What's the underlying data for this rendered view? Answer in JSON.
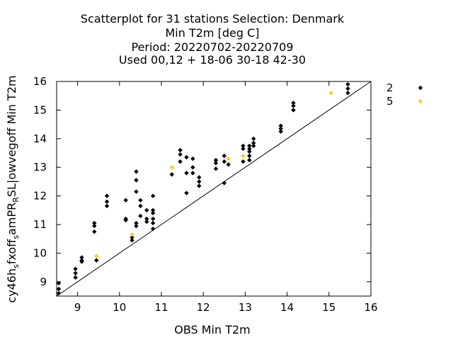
{
  "chart_data": {
    "type": "scatter",
    "title_lines": [
      "Scatterplot for   31 stations Selection: Denmark",
      "Min T2m [deg C]",
      "Period: 20220702-20220709",
      "Used  00,12  + 18-06 30-18 42-30"
    ],
    "xlabel": "OBS Min T2m",
    "ylabel_parts": [
      "cy46h",
      "s",
      "fxoff",
      "s",
      "amPR",
      "R",
      "SL|owvegoff Min T2m"
    ],
    "xlim": [
      8.5,
      16
    ],
    "ylim": [
      8.5,
      16
    ],
    "xticks": [
      9,
      10,
      11,
      12,
      13,
      14,
      15,
      16
    ],
    "yticks": [
      9,
      10,
      11,
      12,
      13,
      14,
      15,
      16
    ],
    "diagonal": true,
    "legend_position": "top-right",
    "series": [
      {
        "name": "2",
        "color": "#000000",
        "points": [
          [
            8.55,
            8.95
          ],
          [
            8.55,
            8.75
          ],
          [
            8.55,
            8.6
          ],
          [
            8.95,
            9.45
          ],
          [
            8.95,
            9.3
          ],
          [
            8.95,
            9.15
          ],
          [
            9.1,
            9.85
          ],
          [
            9.1,
            9.75
          ],
          [
            9.1,
            9.7
          ],
          [
            9.4,
            11.05
          ],
          [
            9.4,
            10.95
          ],
          [
            9.4,
            10.75
          ],
          [
            9.45,
            9.75
          ],
          [
            9.7,
            12.0
          ],
          [
            9.7,
            11.8
          ],
          [
            9.7,
            11.65
          ],
          [
            10.15,
            11.85
          ],
          [
            10.15,
            11.2
          ],
          [
            10.15,
            11.15
          ],
          [
            10.3,
            10.45
          ],
          [
            10.3,
            10.55
          ],
          [
            10.4,
            12.85
          ],
          [
            10.4,
            12.55
          ],
          [
            10.4,
            12.15
          ],
          [
            10.4,
            11.05
          ],
          [
            10.4,
            10.95
          ],
          [
            10.5,
            11.85
          ],
          [
            10.5,
            11.65
          ],
          [
            10.5,
            11.3
          ],
          [
            10.65,
            11.5
          ],
          [
            10.65,
            11.2
          ],
          [
            10.65,
            11.1
          ],
          [
            10.8,
            12.0
          ],
          [
            10.8,
            11.5
          ],
          [
            10.8,
            11.4
          ],
          [
            10.8,
            11.2
          ],
          [
            10.8,
            11.05
          ],
          [
            10.8,
            10.85
          ],
          [
            11.25,
            12.75
          ],
          [
            11.45,
            13.6
          ],
          [
            11.45,
            13.45
          ],
          [
            11.45,
            13.2
          ],
          [
            11.6,
            13.35
          ],
          [
            11.6,
            12.8
          ],
          [
            11.6,
            12.1
          ],
          [
            11.75,
            13.3
          ],
          [
            11.75,
            13.0
          ],
          [
            11.75,
            12.8
          ],
          [
            11.9,
            12.65
          ],
          [
            11.9,
            12.5
          ],
          [
            11.9,
            12.35
          ],
          [
            12.3,
            13.25
          ],
          [
            12.3,
            13.15
          ],
          [
            12.3,
            12.95
          ],
          [
            12.5,
            13.4
          ],
          [
            12.5,
            13.2
          ],
          [
            12.5,
            12.45
          ],
          [
            12.6,
            13.1
          ],
          [
            12.95,
            13.75
          ],
          [
            12.95,
            13.65
          ],
          [
            12.95,
            13.2
          ],
          [
            13.1,
            13.75
          ],
          [
            13.1,
            13.65
          ],
          [
            13.1,
            13.55
          ],
          [
            13.1,
            13.4
          ],
          [
            13.1,
            13.25
          ],
          [
            13.2,
            14.0
          ],
          [
            13.2,
            13.85
          ],
          [
            13.2,
            13.75
          ],
          [
            13.85,
            14.45
          ],
          [
            13.85,
            14.35
          ],
          [
            13.85,
            14.25
          ],
          [
            14.15,
            15.25
          ],
          [
            14.15,
            15.15
          ],
          [
            14.15,
            15.0
          ],
          [
            15.45,
            15.9
          ],
          [
            15.45,
            15.75
          ],
          [
            15.45,
            15.6
          ]
        ]
      },
      {
        "name": "5",
        "color": "#f5d020",
        "points": [
          [
            9.45,
            9.9
          ],
          [
            10.3,
            10.65
          ],
          [
            11.25,
            13.0
          ],
          [
            12.6,
            13.3
          ],
          [
            12.95,
            13.4
          ],
          [
            15.05,
            15.6
          ]
        ]
      }
    ]
  }
}
